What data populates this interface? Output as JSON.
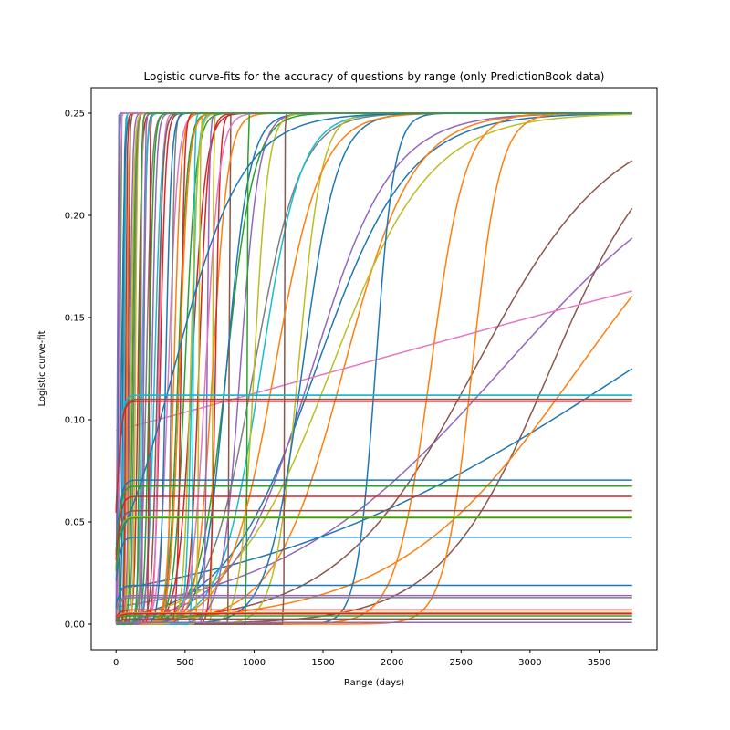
{
  "chart_data": {
    "type": "line",
    "title": "Logistic curve-fits for the accuracy of questions by range (only PredictionBook data)",
    "xlabel": "Range (days)",
    "ylabel": "Logistic curve-fit",
    "xlim": [
      -180,
      3920
    ],
    "ylim": [
      -0.0125,
      0.2625
    ],
    "xticks": [
      0,
      500,
      1000,
      1500,
      2000,
      2500,
      3000,
      3500
    ],
    "xtick_labels": [
      "0",
      "500",
      "1000",
      "1500",
      "2000",
      "2500",
      "3000",
      "3500"
    ],
    "yticks": [
      0.0,
      0.05,
      0.1,
      0.15,
      0.2,
      0.25
    ],
    "ytick_labels": [
      "0.00",
      "0.05",
      "0.10",
      "0.15",
      "0.20",
      "0.25"
    ],
    "grid": false,
    "legend": "none",
    "x_range": [
      0,
      3740
    ],
    "color_cycle": [
      "#1f77b4",
      "#ff7f0e",
      "#2ca02c",
      "#d62728",
      "#9467bd",
      "#8c564b",
      "#e377c2",
      "#7f7f7f",
      "#bcbd22",
      "#17becf"
    ],
    "series_model": "y = L / (1 + exp(-k (x - x0)))",
    "series": [
      {
        "color": "#1f77b4",
        "L": 0.25,
        "k": 0.003,
        "x0": 1450
      },
      {
        "color": "#ff7f0e",
        "L": 0.25,
        "k": 0.004,
        "x0": 1650
      },
      {
        "color": "#2ca02c",
        "L": 0.25,
        "k": 0.01,
        "x0": 800
      },
      {
        "color": "#d62728",
        "L": 0.25,
        "k": 0.02,
        "x0": 550
      },
      {
        "color": "#9467bd",
        "L": 0.25,
        "k": 0.0012,
        "x0": 2800
      },
      {
        "color": "#8c564b",
        "L": 0.25,
        "k": 0.0025,
        "x0": 3150
      },
      {
        "color": "#e377c2",
        "L": 0.25,
        "k": 0.0003,
        "x0": 1650
      },
      {
        "color": "#7f7f7f",
        "L": 0.25,
        "k": 0.006,
        "x0": 1000
      },
      {
        "color": "#bcbd22",
        "L": 0.25,
        "k": 0.0028,
        "x0": 1560
      },
      {
        "color": "#17becf",
        "L": 0.25,
        "k": 0.007,
        "x0": 1050
      },
      {
        "color": "#1f77b4",
        "L": 0.25,
        "k": 0.0007,
        "x0": 3740
      },
      {
        "color": "#ff7f0e",
        "L": 0.25,
        "k": 0.0015,
        "x0": 3350
      },
      {
        "color": "#2ca02c",
        "L": 0.25,
        "k": 0.03,
        "x0": 450
      },
      {
        "color": "#d62728",
        "L": 0.25,
        "k": 0.05,
        "x0": 320
      },
      {
        "color": "#9467bd",
        "L": 0.25,
        "k": 0.0035,
        "x0": 1420
      },
      {
        "color": "#8c564b",
        "L": 0.25,
        "k": 0.002,
        "x0": 2600
      },
      {
        "color": "#1f77b4",
        "L": 0.25,
        "k": 0.015,
        "x0": 1880
      },
      {
        "color": "#ff7f0e",
        "L": 0.25,
        "k": 0.01,
        "x0": 2580
      },
      {
        "color": "#ff7f0e",
        "L": 0.25,
        "k": 0.008,
        "x0": 2280
      },
      {
        "color": "#bcbd22",
        "L": 0.25,
        "k": 0.012,
        "x0": 1320
      },
      {
        "color": "#17becf",
        "L": 0.25,
        "k": 0.04,
        "x0": 280
      },
      {
        "color": "#7f7f7f",
        "L": 0.25,
        "k": 0.05,
        "x0": 220
      },
      {
        "color": "#2ca02c",
        "L": 0.25,
        "k": 0.1,
        "x0": 120
      },
      {
        "color": "#d62728",
        "L": 0.25,
        "k": 0.08,
        "x0": 160
      },
      {
        "color": "#1f77b4",
        "L": 0.25,
        "k": 0.2,
        "x0": 50
      },
      {
        "color": "#ff7f0e",
        "L": 0.25,
        "k": 0.15,
        "x0": 80
      },
      {
        "color": "#9467bd",
        "L": 0.25,
        "k": 0.06,
        "x0": 260
      },
      {
        "color": "#8c564b",
        "L": 0.25,
        "k": 0.5,
        "x0": 820
      },
      {
        "color": "#bcbd22",
        "L": 0.25,
        "k": 0.3,
        "x0": 700
      },
      {
        "color": "#e377c2",
        "L": 0.25,
        "k": 0.03,
        "x0": 380
      },
      {
        "color": "#d62728",
        "L": 0.25,
        "k": 0.03,
        "x0": 600
      },
      {
        "color": "#2ca02c",
        "L": 0.25,
        "k": 0.025,
        "x0": 500
      },
      {
        "color": "#1f77b4",
        "L": 0.25,
        "k": 0.012,
        "x0": 800
      },
      {
        "color": "#ff7f0e",
        "L": 0.25,
        "k": 0.018,
        "x0": 700
      },
      {
        "color": "#9467bd",
        "L": 0.25,
        "k": 0.015,
        "x0": 900
      },
      {
        "color": "#bcbd22",
        "L": 0.25,
        "k": 0.02,
        "x0": 1000
      },
      {
        "color": "#7f7f7f",
        "L": 0.25,
        "k": 0.09,
        "x0": 400
      },
      {
        "color": "#17becf",
        "L": 0.25,
        "k": 0.05,
        "x0": 550
      },
      {
        "color": "#d62728",
        "L": 0.25,
        "k": 0.06,
        "x0": 720
      },
      {
        "color": "#2ca02c",
        "L": 0.25,
        "k": 0.4,
        "x0": 950
      },
      {
        "color": "#9467bd",
        "L": 0.25,
        "k": 0.12,
        "x0": 660
      },
      {
        "color": "#8c564b",
        "L": 0.25,
        "k": 0.6,
        "x0": 1220
      },
      {
        "color": "#1f77b4",
        "L": 0.25,
        "k": 0.008,
        "x0": 1350
      },
      {
        "color": "#ff7f0e",
        "L": 0.25,
        "k": 0.006,
        "x0": 1150
      },
      {
        "color": "#bcbd22",
        "L": 0.25,
        "k": 0.2,
        "x0": 600
      },
      {
        "color": "#e377c2",
        "L": 0.25,
        "k": 0.25,
        "x0": 180
      },
      {
        "color": "#d62728",
        "L": 0.25,
        "k": 0.35,
        "x0": 240
      },
      {
        "color": "#1f77b4",
        "L": 0.25,
        "k": 0.4,
        "x0": 15
      },
      {
        "color": "#9467bd",
        "L": 0.25,
        "k": 0.5,
        "x0": 10
      },
      {
        "color": "#2ca02c",
        "L": 0.25,
        "k": 0.45,
        "x0": 30
      },
      {
        "color": "#17becf",
        "L": 0.25,
        "k": 0.3,
        "x0": 60
      },
      {
        "color": "#8c564b",
        "L": 0.25,
        "k": 0.25,
        "x0": 90
      },
      {
        "color": "#bcbd22",
        "L": 0.25,
        "k": 0.15,
        "x0": 140
      },
      {
        "color": "#7f7f7f",
        "L": 0.25,
        "k": 0.1,
        "x0": 200
      },
      {
        "color": "#e377c2",
        "L": 0.25,
        "k": 0.07,
        "x0": 310
      },
      {
        "color": "#ff7f0e",
        "L": 0.25,
        "k": 0.04,
        "x0": 420
      },
      {
        "color": "#d62728",
        "L": 0.25,
        "k": 0.08,
        "x0": 470
      },
      {
        "color": "#1f77b4",
        "L": 0.25,
        "k": 0.05,
        "x0": 360
      },
      {
        "color": "#17becf",
        "L": 0.25,
        "k": 0.2,
        "x0": 560
      },
      {
        "color": "#e377c2",
        "L": 0.25,
        "k": 0.02,
        "x0": 650
      },
      {
        "color": "#bcbd22",
        "L": 0.25,
        "k": 0.04,
        "x0": 540
      },
      {
        "color": "#ff7f0e",
        "L": 0.25,
        "k": 0.03,
        "x0": 460
      },
      {
        "color": "#8c564b",
        "L": 0.25,
        "k": 0.05,
        "x0": 300
      },
      {
        "color": "#9467bd",
        "L": 0.25,
        "k": 0.1,
        "x0": 100
      },
      {
        "color": "#2ca02c",
        "L": 0.25,
        "k": 0.06,
        "x0": 240
      },
      {
        "color": "#1f77b4",
        "L": 0.25,
        "k": 0.09,
        "x0": 40
      },
      {
        "color": "#d62728",
        "L": 0.25,
        "k": 0.2,
        "x0": 70
      },
      {
        "color": "#7f7f7f",
        "L": 0.25,
        "k": 0.12,
        "x0": 130
      },
      {
        "color": "#bcbd22",
        "L": 0.25,
        "k": 0.09,
        "x0": 110
      },
      {
        "color": "#17becf",
        "L": 0.25,
        "k": 0.07,
        "x0": 190
      },
      {
        "color": "#e377c2",
        "L": 0.25,
        "k": 0.3,
        "x0": 25
      },
      {
        "color": "#9467bd",
        "L": 0.25,
        "k": 0.2,
        "x0": 200
      },
      {
        "color": "#1f77b4",
        "L": 0.25,
        "k": 0.004,
        "x0": 420
      },
      {
        "color": "#2ca02c",
        "L": 0.25,
        "k": 0.15,
        "x0": 170
      },
      {
        "color": "#1f77b4",
        "L": 0.112,
        "k": 0.05,
        "x0": 0
      },
      {
        "color": "#17becf",
        "L": 0.112,
        "k": 0.05,
        "x0": 0
      },
      {
        "color": "#e377c2",
        "L": 0.11,
        "k": 0.05,
        "x0": 0
      },
      {
        "color": "#8c564b",
        "L": 0.11,
        "k": 0.05,
        "x0": 0
      },
      {
        "color": "#d62728",
        "L": 0.109,
        "k": 0.05,
        "x0": 0
      },
      {
        "color": "#1f77b4",
        "L": 0.0705,
        "k": 0.05,
        "x0": 0
      },
      {
        "color": "#2ca02c",
        "L": 0.0675,
        "k": 0.05,
        "x0": 0
      },
      {
        "color": "#d62728",
        "L": 0.0625,
        "k": 0.05,
        "x0": 0
      },
      {
        "color": "#8c564b",
        "L": 0.0555,
        "k": 0.05,
        "x0": 0
      },
      {
        "color": "#bcbd22",
        "L": 0.0525,
        "k": 0.05,
        "x0": 0
      },
      {
        "color": "#2ca02c",
        "L": 0.052,
        "k": 0.05,
        "x0": 0
      },
      {
        "color": "#1f77b4",
        "L": 0.0425,
        "k": 0.05,
        "x0": 0
      },
      {
        "color": "#1f77b4",
        "L": 0.019,
        "k": 0.05,
        "x0": 0
      },
      {
        "color": "#9467bd",
        "L": 0.014,
        "k": 0.05,
        "x0": 0
      },
      {
        "color": "#7f7f7f",
        "L": 0.013,
        "k": 0.05,
        "x0": 0
      },
      {
        "color": "#d62728",
        "L": 0.007,
        "k": 0.05,
        "x0": 0
      },
      {
        "color": "#ff7f0e",
        "L": 0.0055,
        "k": 0.05,
        "x0": 0
      },
      {
        "color": "#d62728",
        "L": 0.005,
        "k": 0.05,
        "x0": 0
      },
      {
        "color": "#2ca02c",
        "L": 0.004,
        "k": 0.05,
        "x0": 0
      },
      {
        "color": "#8c564b",
        "L": 0.0025,
        "k": 0.05,
        "x0": 0
      },
      {
        "color": "#9467bd",
        "L": 0.0008,
        "k": 0.05,
        "x0": 0
      }
    ]
  }
}
